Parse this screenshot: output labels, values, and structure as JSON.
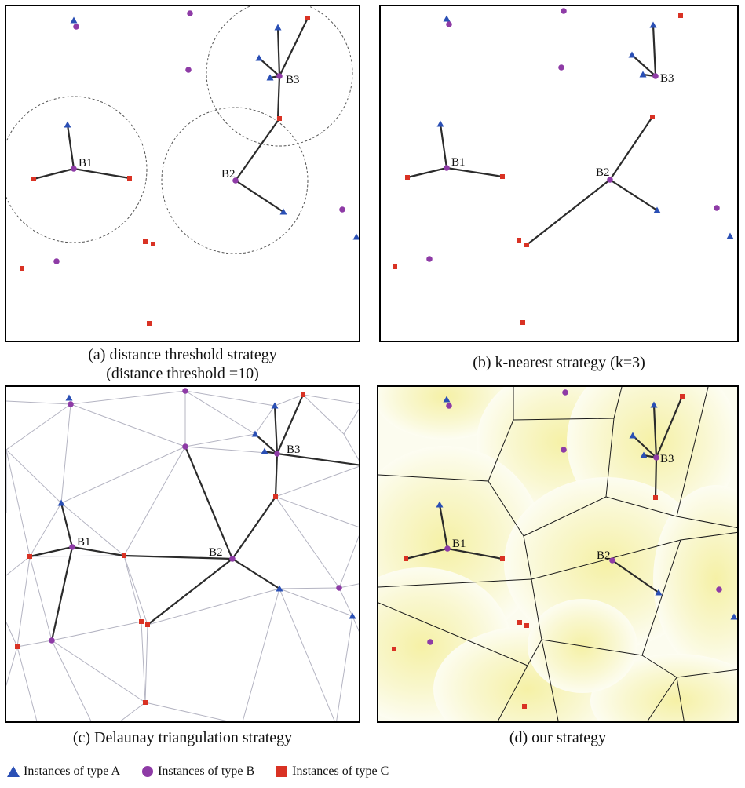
{
  "colors": {
    "type_a": "#2a4fb5",
    "type_b": "#8e3ba6",
    "type_c": "#d93224",
    "edge": "#2b2b2b",
    "frame": "#000000"
  },
  "labels": {
    "b1": "B1",
    "b2": "B2",
    "b3": "B3"
  },
  "panels": {
    "a": {
      "caption_line1": "(a) distance threshold strategy",
      "caption_line2": "(distance threshold =10)"
    },
    "b": {
      "caption": "(b) k-nearest strategy (k=3)"
    },
    "c": {
      "caption": "(c) Delaunay triangulation strategy"
    },
    "d": {
      "caption": "(d) our strategy"
    }
  },
  "legend": {
    "a": {
      "label": "Instances of type A",
      "icon": "triangle-icon"
    },
    "b": {
      "label": "Instances of type B",
      "icon": "circle-icon"
    },
    "c": {
      "label": "Instances of type C",
      "icon": "square-icon"
    }
  }
}
